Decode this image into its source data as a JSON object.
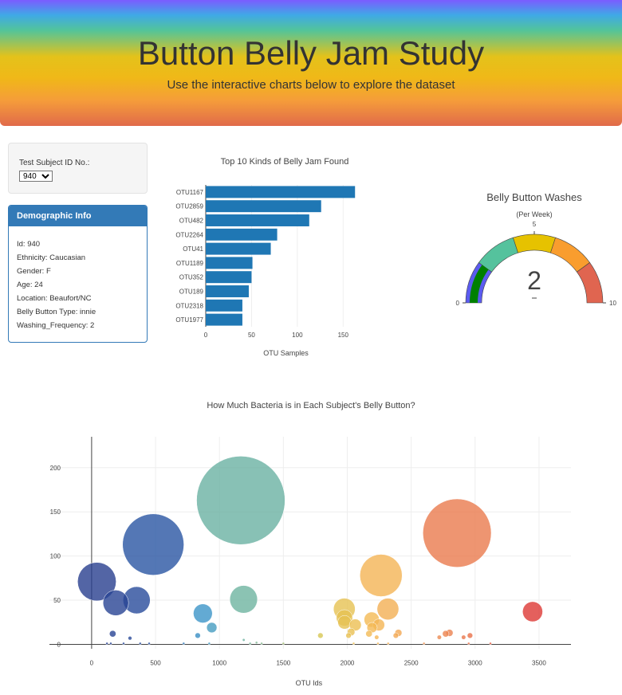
{
  "header": {
    "title": "Button Belly Jam Study",
    "subtitle": "Use the interactive charts below to explore the dataset"
  },
  "selector": {
    "label": "Test Subject ID No.:",
    "selected": "940"
  },
  "demographics": {
    "heading": "Demographic Info",
    "rows": [
      "Id: 940",
      "Ethnicity: Caucasian",
      "Gender: F",
      "Age: 24",
      "Location: Beaufort/NC",
      "Belly Button Type: innie",
      "Washing_Frequency: 2"
    ]
  },
  "chart_data": [
    {
      "type": "bar",
      "orientation": "horizontal",
      "title": "Top 10 Kinds of Belly Jam Found",
      "xlabel": "OTU Samples",
      "ylabel": "",
      "categories": [
        "OTU1167",
        "OTU2859",
        "OTU482",
        "OTU2264",
        "OTU41",
        "OTU1189",
        "OTU352",
        "OTU189",
        "OTU2318",
        "OTU1977"
      ],
      "values": [
        163,
        126,
        113,
        78,
        71,
        51,
        50,
        47,
        40,
        40
      ],
      "xlim": [
        0,
        175
      ],
      "xticks": [
        0,
        50,
        100,
        150
      ],
      "color": "#1f77b4",
      "grid": true
    },
    {
      "type": "gauge",
      "title": "Belly Button Washes",
      "subtitle": "(Per Week)",
      "value": 2,
      "range": [
        0,
        10
      ],
      "tick_labels": [
        "0",
        "5",
        "10"
      ],
      "steps": [
        {
          "range": [
            0,
            2
          ],
          "color": "#5b5bf0"
        },
        {
          "range": [
            2,
            4
          ],
          "color": "#55c29d"
        },
        {
          "range": [
            4,
            6
          ],
          "color": "#e6c200"
        },
        {
          "range": [
            6,
            8
          ],
          "color": "#f99d2e"
        },
        {
          "range": [
            8,
            10
          ],
          "color": "#e06550"
        }
      ],
      "bar_color": "#008000"
    },
    {
      "type": "scatter",
      "title": "How Much Bacteria is in Each Subject's Belly Button?",
      "xlabel": "OTU Ids",
      "ylabel": "",
      "xlim": [
        -330,
        3750
      ],
      "ylim": [
        -5,
        235
      ],
      "xticks": [
        0,
        500,
        1000,
        1500,
        2000,
        2500,
        3000,
        3500
      ],
      "yticks": [
        0,
        50,
        100,
        150,
        200
      ],
      "grid": true,
      "colorscale": "Earth",
      "points": [
        {
          "x": 41,
          "y": 71
        },
        {
          "x": 189,
          "y": 47
        },
        {
          "x": 352,
          "y": 50
        },
        {
          "x": 482,
          "y": 113
        },
        {
          "x": 870,
          "y": 35
        },
        {
          "x": 940,
          "y": 19
        },
        {
          "x": 1167,
          "y": 163
        },
        {
          "x": 1189,
          "y": 51
        },
        {
          "x": 1977,
          "y": 40
        },
        {
          "x": 1978,
          "y": 30
        },
        {
          "x": 1979,
          "y": 25
        },
        {
          "x": 2063,
          "y": 22
        },
        {
          "x": 2191,
          "y": 28
        },
        {
          "x": 2194,
          "y": 19
        },
        {
          "x": 2246,
          "y": 22
        },
        {
          "x": 2264,
          "y": 78
        },
        {
          "x": 2318,
          "y": 40
        },
        {
          "x": 3450,
          "y": 37
        },
        {
          "x": 2859,
          "y": 126
        },
        {
          "x": 165,
          "y": 12
        },
        {
          "x": 300,
          "y": 7
        },
        {
          "x": 830,
          "y": 10
        },
        {
          "x": 1190,
          "y": 5
        },
        {
          "x": 1790,
          "y": 10
        },
        {
          "x": 2030,
          "y": 14
        },
        {
          "x": 2010,
          "y": 10
        },
        {
          "x": 2170,
          "y": 12
        },
        {
          "x": 2230,
          "y": 8
        },
        {
          "x": 2400,
          "y": 13
        },
        {
          "x": 2380,
          "y": 10
        },
        {
          "x": 2720,
          "y": 8
        },
        {
          "x": 2770,
          "y": 12
        },
        {
          "x": 2800,
          "y": 13
        },
        {
          "x": 2910,
          "y": 8
        },
        {
          "x": 2960,
          "y": 10
        },
        {
          "x": 120,
          "y": 1
        },
        {
          "x": 150,
          "y": 1
        },
        {
          "x": 250,
          "y": 1
        },
        {
          "x": 380,
          "y": 1
        },
        {
          "x": 450,
          "y": 1
        },
        {
          "x": 720,
          "y": 1
        },
        {
          "x": 920,
          "y": 1
        },
        {
          "x": 1240,
          "y": 1
        },
        {
          "x": 1290,
          "y": 2
        },
        {
          "x": 1330,
          "y": 1
        },
        {
          "x": 1500,
          "y": 1
        },
        {
          "x": 2050,
          "y": 1
        },
        {
          "x": 2240,
          "y": 1
        },
        {
          "x": 2320,
          "y": 1
        },
        {
          "x": 2600,
          "y": 1
        },
        {
          "x": 2950,
          "y": 1
        },
        {
          "x": 3120,
          "y": 1
        }
      ]
    }
  ]
}
